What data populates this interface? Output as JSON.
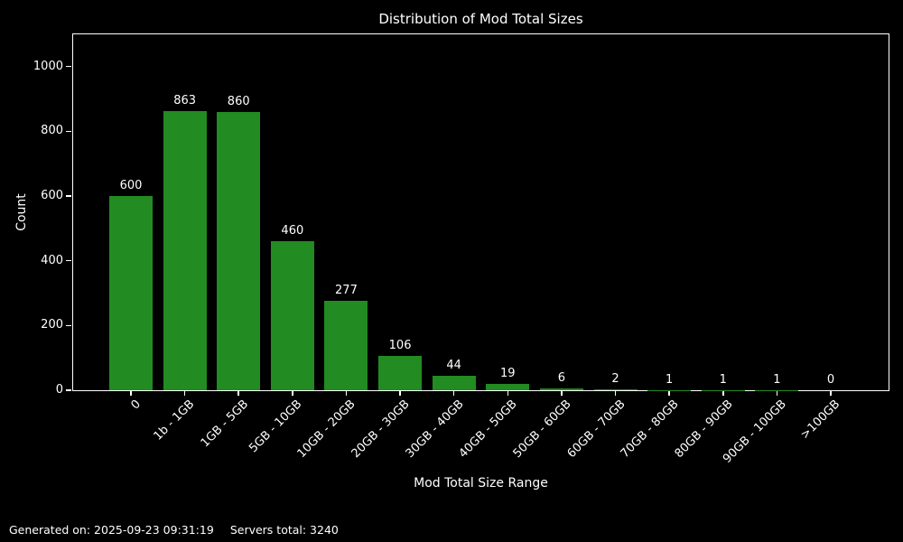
{
  "figure": {
    "background": "#000000",
    "text_color": "#ffffff"
  },
  "chart_data": {
    "type": "bar",
    "title": "Distribution of Mod Total Sizes",
    "xlabel": "Mod Total Size Range",
    "ylabel": "Count",
    "categories": [
      "0",
      "1b - 1GB",
      "1GB - 5GB",
      "5GB - 10GB",
      "10GB - 20GB",
      "20GB - 30GB",
      "30GB - 40GB",
      "40GB - 50GB",
      "50GB - 60GB",
      "60GB - 70GB",
      "70GB - 80GB",
      "80GB - 90GB",
      "90GB - 100GB",
      ">100GB"
    ],
    "values": [
      600,
      863,
      860,
      460,
      277,
      106,
      44,
      19,
      6,
      2,
      1,
      1,
      1,
      0
    ],
    "yticks": [
      0,
      200,
      400,
      600,
      800,
      1000
    ],
    "ylim": [
      0,
      1100
    ],
    "bar_color": "#228B22",
    "axis_color": "#ffffff",
    "grid": false,
    "legend": null,
    "x_tick_rotation_deg": 45
  },
  "footer": {
    "generated_on": "Generated on: 2025-09-23 09:31:19",
    "servers_total": "Servers total: 3240"
  }
}
